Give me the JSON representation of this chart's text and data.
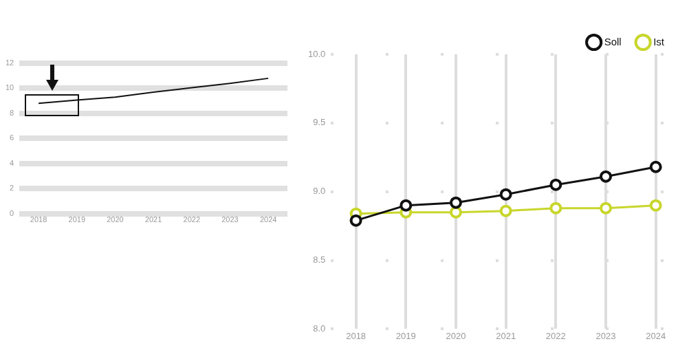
{
  "chart_data": [
    {
      "type": "line",
      "categories": [
        "2018",
        "2019",
        "2020",
        "2021",
        "2022",
        "2023",
        "2024"
      ],
      "values": [
        8.8,
        9.07,
        9.3,
        9.7,
        10.05,
        10.4,
        10.8
      ],
      "color": "#111111",
      "ylim": [
        0,
        12
      ],
      "yticks": [
        0,
        2,
        4,
        6,
        8,
        10,
        12
      ],
      "grid": "y",
      "marker": "none"
    },
    {
      "type": "line",
      "categories": [
        "2018",
        "2019",
        "2020",
        "2021",
        "2022",
        "2023",
        "2024"
      ],
      "series": [
        {
          "name": "Soll",
          "color": "#111111",
          "values": [
            8.79,
            8.9,
            8.92,
            8.98,
            9.05,
            9.11,
            9.18
          ]
        },
        {
          "name": "Ist",
          "color": "#c8d62b",
          "values": [
            8.84,
            8.85,
            8.85,
            8.86,
            8.88,
            8.88,
            8.9
          ]
        }
      ],
      "ylim": [
        8,
        10
      ],
      "yticks": [
        {
          "value": 8,
          "label": "8.0"
        },
        8.5,
        {
          "value": 9,
          "label": "9.0"
        },
        9.5,
        {
          "value": 10,
          "label": "10.0"
        }
      ],
      "grid": true,
      "legend": "top right",
      "marker": "circle"
    }
  ]
}
